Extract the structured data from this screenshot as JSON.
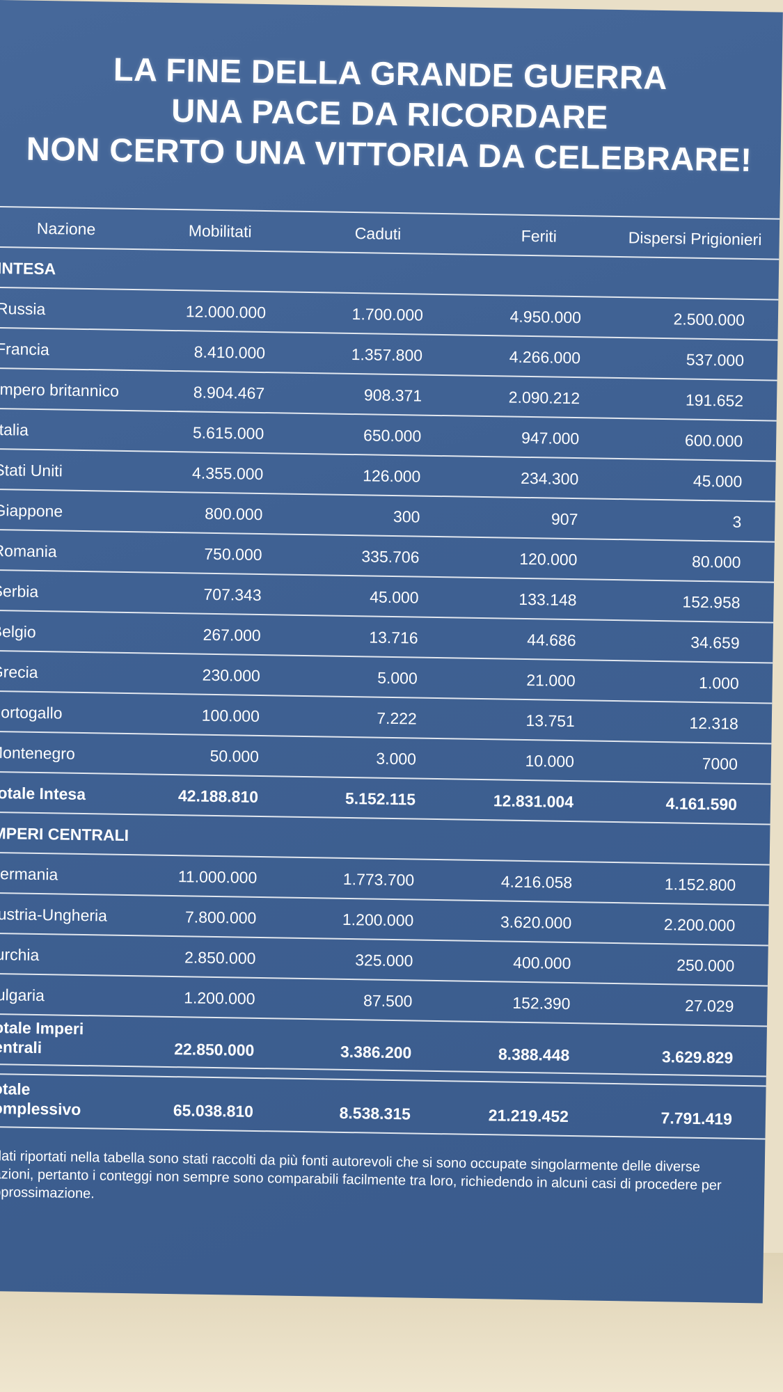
{
  "title_lines": [
    "LA FINE DELLA GRANDE GUERRA",
    "UNA PACE DA RICORDARE",
    "NON CERTO UNA VITTORIA DA CELEBRARE!"
  ],
  "headers": [
    "Nazione",
    "Mobilitati",
    "Caduti",
    "Feriti",
    "Dispersi Prigionieri"
  ],
  "sections": [
    {
      "label": "INTESA",
      "rows": [
        [
          "Russia",
          "12.000.000",
          "1.700.000",
          "4.950.000",
          "2.500.000"
        ],
        [
          "Francia",
          "8.410.000",
          "1.357.800",
          "4.266.000",
          "537.000"
        ],
        [
          "Impero britannico",
          "8.904.467",
          "908.371",
          "2.090.212",
          "191.652"
        ],
        [
          "Italia",
          "5.615.000",
          "650.000",
          "947.000",
          "600.000"
        ],
        [
          "Stati Uniti",
          "4.355.000",
          "126.000",
          "234.300",
          "45.000"
        ],
        [
          "Giappone",
          "800.000",
          "300",
          "907",
          "3"
        ],
        [
          "Romania",
          "750.000",
          "335.706",
          "120.000",
          "80.000"
        ],
        [
          "Serbia",
          "707.343",
          "45.000",
          "133.148",
          "152.958"
        ],
        [
          "Belgio",
          "267.000",
          "13.716",
          "44.686",
          "34.659"
        ],
        [
          "Grecia",
          "230.000",
          "5.000",
          "21.000",
          "1.000"
        ],
        [
          "Portogallo",
          "100.000",
          "7.222",
          "13.751",
          "12.318"
        ],
        [
          "Montenegro",
          "50.000",
          "3.000",
          "10.000",
          "7000"
        ]
      ],
      "total": [
        "Totale Intesa",
        "42.188.810",
        "5.152.115",
        "12.831.004",
        "4.161.590"
      ]
    },
    {
      "label": "IMPERI CENTRALI",
      "rows": [
        [
          "Germania",
          "11.000.000",
          "1.773.700",
          "4.216.058",
          "1.152.800"
        ],
        [
          "Austria-Ungheria",
          "7.800.000",
          "1.200.000",
          "3.620.000",
          "2.200.000"
        ],
        [
          "Turchia",
          "2.850.000",
          "325.000",
          "400.000",
          "250.000"
        ],
        [
          "Bulgaria",
          "1.200.000",
          "87.500",
          "152.390",
          "27.029"
        ]
      ],
      "total": [
        "Totale Imperi centrali",
        "22.850.000",
        "3.386.200",
        "8.388.448",
        "3.629.829"
      ]
    }
  ],
  "grand_total": [
    "Totale complessivo",
    "65.038.810",
    "8.538.315",
    "21.219.452",
    "7.791.419"
  ],
  "note": "I dati riportati nella tabella sono stati raccolti da più fonti autorevoli che si sono occupate singolarmente delle diverse nazioni, pertanto i conteggi non sempre sono comparabili facilmente tra loro, richiedendo in alcuni casi di procedere per approssimazione."
}
